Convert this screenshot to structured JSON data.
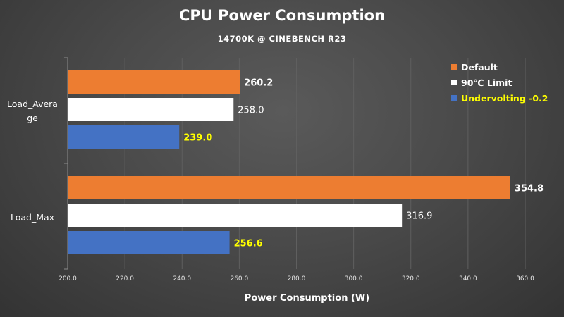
{
  "chart_data": {
    "type": "bar",
    "orientation": "horizontal",
    "title": "CPU Power Consumption",
    "subtitle": "14700K @ CINEBENCH R23",
    "xlabel": "Power Consumption (W)",
    "xlim": [
      200,
      360
    ],
    "xticks": [
      "200.0",
      "220.0",
      "240.0",
      "260.0",
      "280.0",
      "300.0",
      "320.0",
      "340.0",
      "360.0"
    ],
    "categories": [
      {
        "lines": [
          "Load_Avera",
          "ge"
        ]
      },
      {
        "lines": [
          "Load_Max"
        ]
      }
    ],
    "series": [
      {
        "name": "Default",
        "color": "#ED7D31",
        "label_color": "#ffffff",
        "values": [
          260.2,
          354.8
        ]
      },
      {
        "name": "90℃ Limit",
        "color": "#FFFFFF",
        "label_color": "#ffffff",
        "values": [
          258.0,
          316.9
        ]
      },
      {
        "name": "Undervolting -0.2",
        "color": "#4472C4",
        "label_color": "#FFFF00",
        "values": [
          239.0,
          256.6
        ]
      }
    ],
    "value_labels": [
      [
        "260.2",
        "258.0",
        "239.0"
      ],
      [
        "354.8",
        "316.9",
        "256.6"
      ]
    ],
    "grid": true,
    "legend_position": "top-right"
  }
}
